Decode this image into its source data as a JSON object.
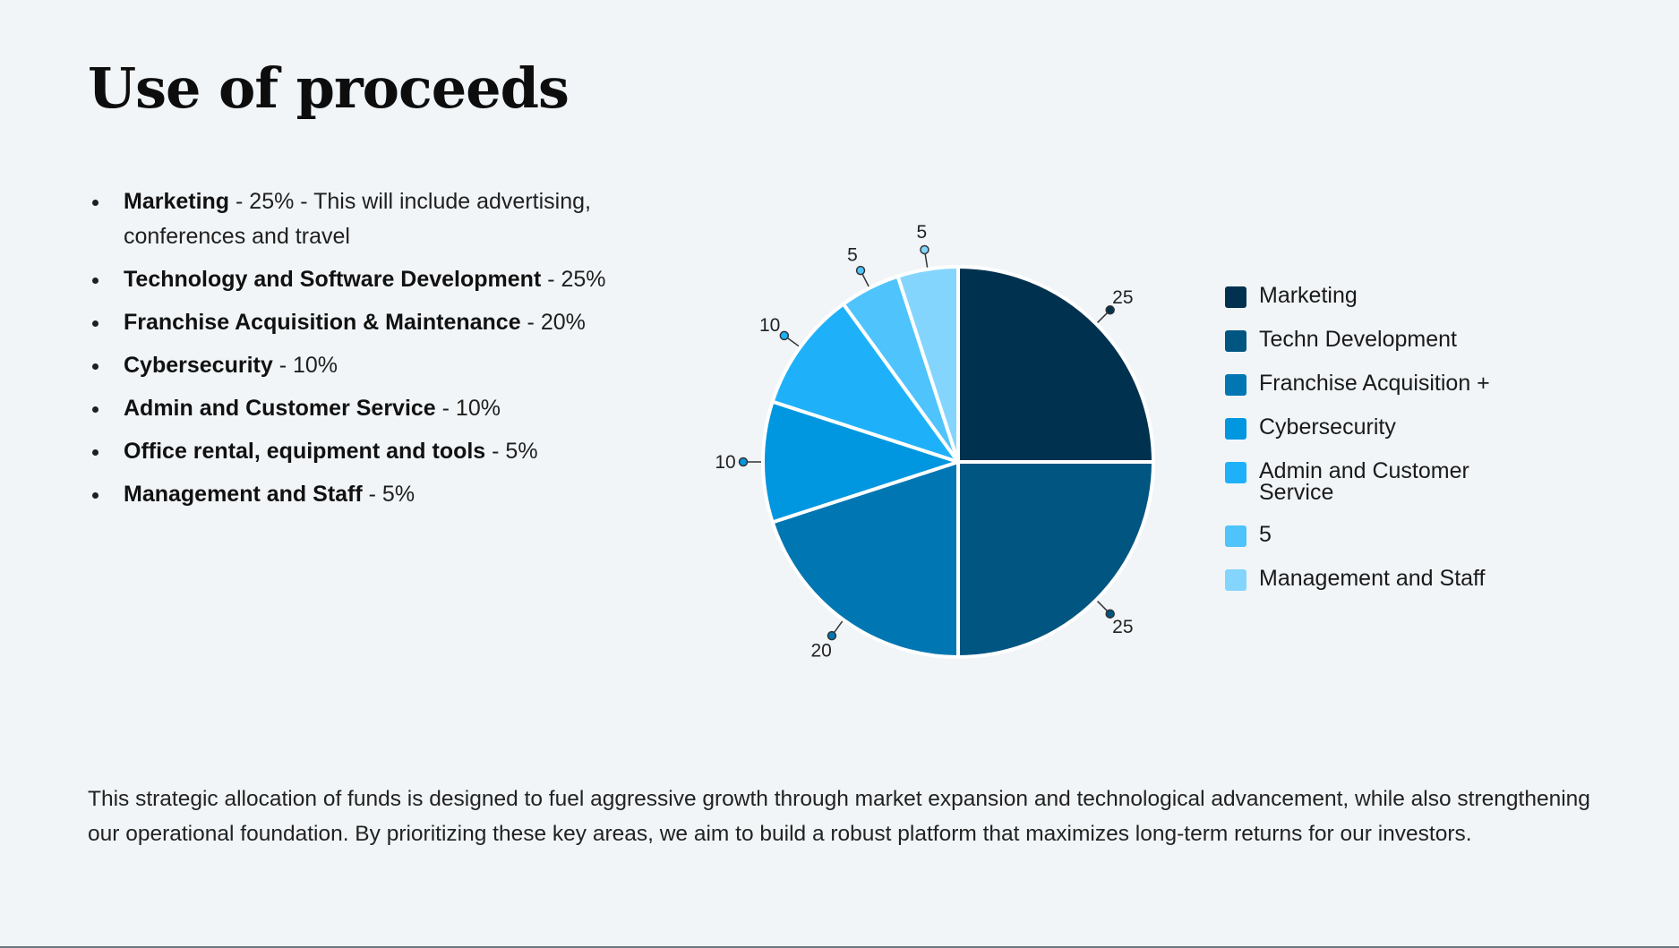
{
  "title": "Use of proceeds",
  "bullets": [
    {
      "bold": "Marketing",
      "rest": " - 25% - This will include advertising, conferences and travel"
    },
    {
      "bold": "Technology and Software Development",
      "rest": " - 25%"
    },
    {
      "bold": "Franchise Acquisition & Maintenance",
      "rest": " - 20%"
    },
    {
      "bold": "Cybersecurity",
      "rest": " - 10%"
    },
    {
      "bold": "Admin and Customer Service",
      "rest": " - 10%"
    },
    {
      "bold": "Office rental, equipment and tools",
      "rest": " - 5%"
    },
    {
      "bold": "Management and Staff",
      "rest": " - 5%"
    }
  ],
  "chart_data": {
    "type": "pie",
    "title": "",
    "categories": [
      "Marketing",
      "Techn Development",
      "Franchise Acquisition +",
      "Cybersecurity",
      "Admin and Customer Service",
      "5",
      "Management and Staff"
    ],
    "values": [
      25,
      25,
      20,
      10,
      10,
      5,
      5
    ],
    "data_labels": [
      "25",
      "25",
      "20",
      "10",
      "10",
      "5",
      "5"
    ],
    "colors": [
      "#00324f",
      "#005581",
      "#0077b3",
      "#0096e0",
      "#1eb1fa",
      "#4fc3fb",
      "#84d5fd"
    ],
    "start_angle_deg": 0,
    "direction": "clockwise",
    "legend": "right"
  },
  "footer": "This strategic allocation of funds is designed to fuel aggressive growth through market expansion and technological advancement, while also strengthening our operational foundation. By prioritizing these key areas, we aim to build a robust platform that maximizes long-term returns for our investors."
}
